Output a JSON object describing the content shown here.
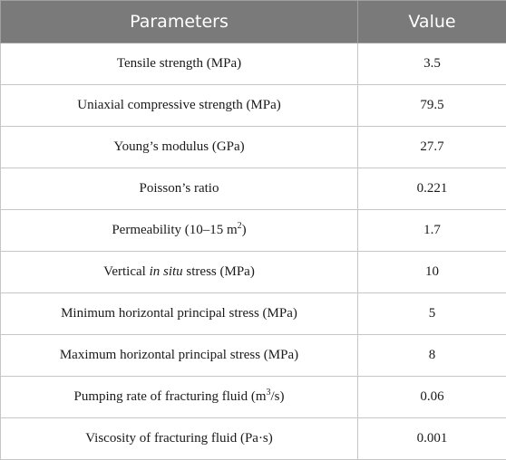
{
  "table": {
    "headers": [
      "Parameters",
      "Value"
    ],
    "rows": [
      {
        "parameter": "Tensile strength (MPa)",
        "value": "3.5"
      },
      {
        "parameter": "Uniaxial compressive strength (MPa)",
        "value": "79.5"
      },
      {
        "parameter": "Young’s modulus (GPa)",
        "value": "27.7"
      },
      {
        "parameter": "Poisson’s ratio",
        "value": "0.221"
      },
      {
        "parameter_parts": [
          "Permeability (10–15 m",
          "2",
          ")"
        ],
        "value": "1.7"
      },
      {
        "parameter_parts": [
          "Vertical ",
          "in situ",
          " stress (MPa)"
        ],
        "value": "10"
      },
      {
        "parameter": "Minimum horizontal principal stress (MPa)",
        "value": "5"
      },
      {
        "parameter": "Maximum horizontal principal stress (MPa)",
        "value": "8"
      },
      {
        "parameter_parts": [
          "Pumping rate of fracturing fluid (m",
          "3",
          "/s)"
        ],
        "value": "0.06"
      },
      {
        "parameter": "Viscosity of fracturing fluid (Pa·s)",
        "value": "0.001"
      }
    ]
  }
}
